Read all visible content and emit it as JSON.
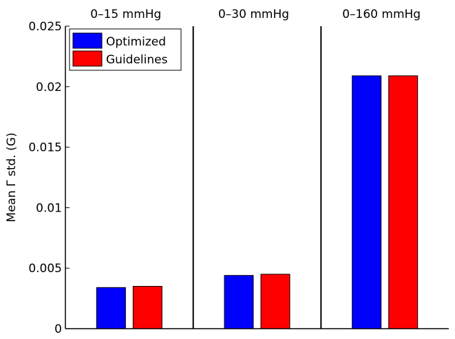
{
  "chart_data": {
    "type": "bar",
    "panels": [
      "0–15 mmHg",
      "0–30 mmHg",
      "0–160 mmHg"
    ],
    "series": [
      {
        "name": "Optimized",
        "color": "#0000ff",
        "values": [
          0.0034,
          0.0044,
          0.0209
        ]
      },
      {
        "name": "Guidelines",
        "color": "#ff0000",
        "values": [
          0.0035,
          0.0045,
          0.0209
        ]
      }
    ],
    "ylabel": "Mean Γ std. (G)",
    "xlabel": "",
    "title": "",
    "ylim": [
      0,
      0.025
    ],
    "yticks": [
      0,
      0.005,
      0.01,
      0.015,
      0.02,
      0.025
    ],
    "ytick_labels": [
      "0",
      "0.005",
      "0.01",
      "0.015",
      "0.02",
      "0.025"
    ],
    "legend_position": "top-left",
    "grid": false
  }
}
